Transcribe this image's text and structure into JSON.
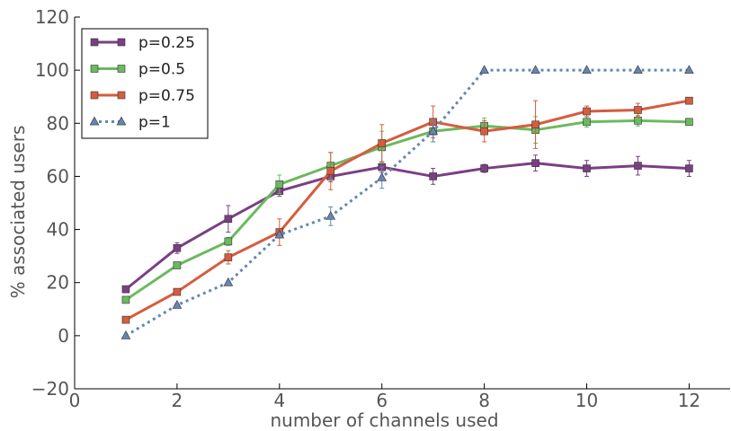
{
  "chart_data": {
    "type": "line",
    "xlabel": "number of channels used",
    "ylabel": "% associated users",
    "xlim": [
      0,
      12.8
    ],
    "ylim": [
      -20,
      120
    ],
    "xticks": [
      0,
      2,
      4,
      6,
      8,
      10,
      12
    ],
    "yticks": [
      -20,
      0,
      20,
      40,
      60,
      80,
      100,
      120
    ],
    "xtick_labels": [
      "0",
      "2",
      "4",
      "6",
      "8",
      "10",
      "12"
    ],
    "ytick_labels": [
      "−20",
      "0",
      "20",
      "40",
      "60",
      "80",
      "100",
      "120"
    ],
    "grid": false,
    "legend_position": "top-left",
    "x": [
      1,
      2,
      3,
      4,
      5,
      6,
      7,
      8,
      9,
      10,
      11,
      12
    ],
    "series": [
      {
        "name": "p=0.25",
        "color": "#7b3f84",
        "marker": "square",
        "linestyle": "solid",
        "values": [
          17.5,
          33,
          44,
          54.5,
          60,
          63.5,
          60,
          63,
          65,
          63,
          64,
          63
        ],
        "errors": [
          1,
          2,
          5,
          2,
          2,
          2,
          3,
          1.5,
          3,
          3,
          3.5,
          3
        ]
      },
      {
        "name": "p=0.5",
        "color": "#6cb960",
        "marker": "square",
        "linestyle": "solid",
        "values": [
          13.5,
          26.5,
          35.5,
          57,
          64,
          71,
          77,
          79,
          77.5,
          80.5,
          81,
          80.5
        ],
        "errors": [
          1,
          1,
          1.5,
          3.5,
          5,
          6,
          4,
          3,
          5,
          2,
          2,
          1
        ]
      },
      {
        "name": "p=0.75",
        "color": "#d65c3f",
        "marker": "square",
        "linestyle": "solid",
        "values": [
          6,
          16.5,
          29.5,
          39,
          62,
          72.5,
          80.5,
          77,
          79.5,
          84.5,
          85,
          88.5
        ],
        "errors": [
          1,
          1,
          2.5,
          5,
          7,
          7,
          6,
          4,
          9,
          2,
          2.5,
          1
        ]
      },
      {
        "name": "p=1",
        "color": "#6685b3",
        "marker": "triangle",
        "linestyle": "dotted",
        "values": [
          0,
          11.5,
          20,
          38,
          45,
          59.5,
          77,
          100,
          100,
          100,
          100,
          100
        ],
        "errors": [
          0,
          0.5,
          0.5,
          1,
          3.5,
          4,
          4,
          0,
          0,
          0,
          0,
          0
        ]
      }
    ]
  }
}
